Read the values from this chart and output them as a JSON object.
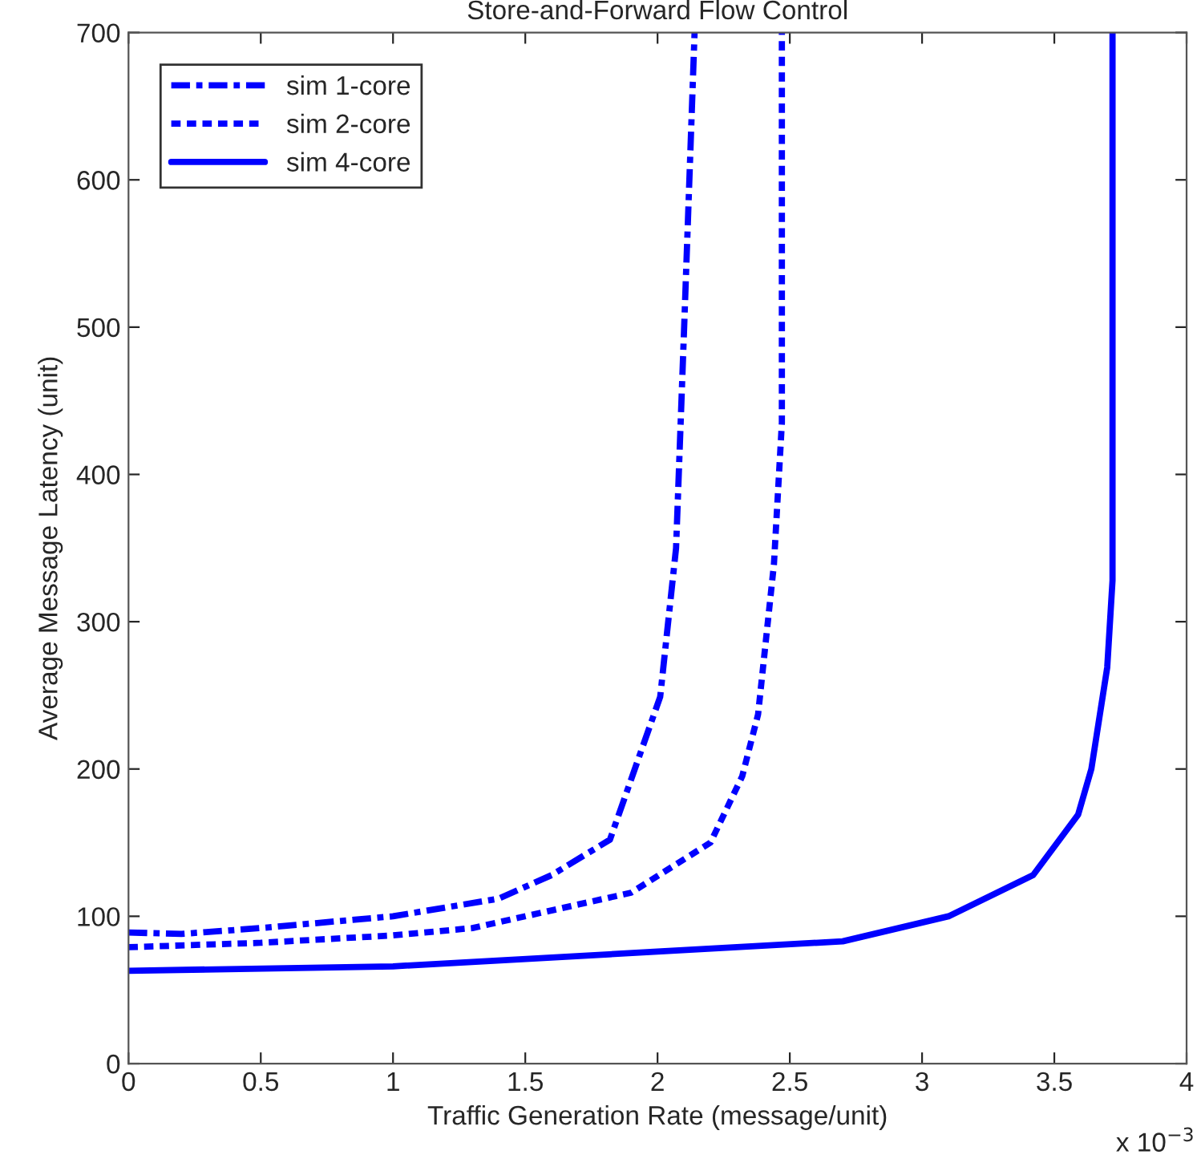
{
  "chart_data": {
    "type": "line",
    "title": "Store-and-Forward Flow Control",
    "xlabel": "Traffic Generation Rate (message/unit)",
    "ylabel": "Average Message Latency (unit)",
    "annotations": [
      "x 10$^{−3}$"
    ],
    "series": [
      {
        "name": "sim 1-core",
        "color": "#0000ff",
        "line_style": "dashdot",
        "x": [
          0,
          0.2,
          0.5,
          1,
          1.4,
          1.6,
          1.82,
          2.01,
          2.07,
          2.1,
          2.14
        ],
        "values": [
          89,
          88,
          92,
          100,
          112,
          128,
          152,
          249,
          350,
          497,
          700
        ]
      },
      {
        "name": "sim 2-core",
        "color": "#0000ff",
        "line_style": "dotted",
        "x": [
          0,
          0.5,
          1,
          1.3,
          1.9,
          2.2,
          2.32,
          2.38,
          2.44,
          2.47,
          2.47
        ],
        "values": [
          79,
          82,
          87,
          92,
          116,
          150,
          195,
          237,
          339,
          435,
          700
        ]
      },
      {
        "name": "sim 4-core",
        "color": "#0000ff",
        "line_style": "solid",
        "x": [
          0,
          1,
          2,
          2.7,
          3.1,
          3.42,
          3.59,
          3.64,
          3.7,
          3.72,
          3.72
        ],
        "values": [
          63,
          66,
          76,
          83,
          100,
          128,
          169,
          200,
          269,
          328,
          700
        ]
      }
    ],
    "xlim": [
      0,
      4
    ],
    "xticks": [
      0,
      0.5,
      1,
      1.5,
      2,
      2.5,
      3,
      3.5,
      4
    ],
    "ylim": [
      0,
      700
    ],
    "yticks": [
      0,
      100,
      200,
      300,
      400,
      500,
      600,
      700
    ],
    "grid": false,
    "legend": "top left",
    "marker": "none"
  }
}
